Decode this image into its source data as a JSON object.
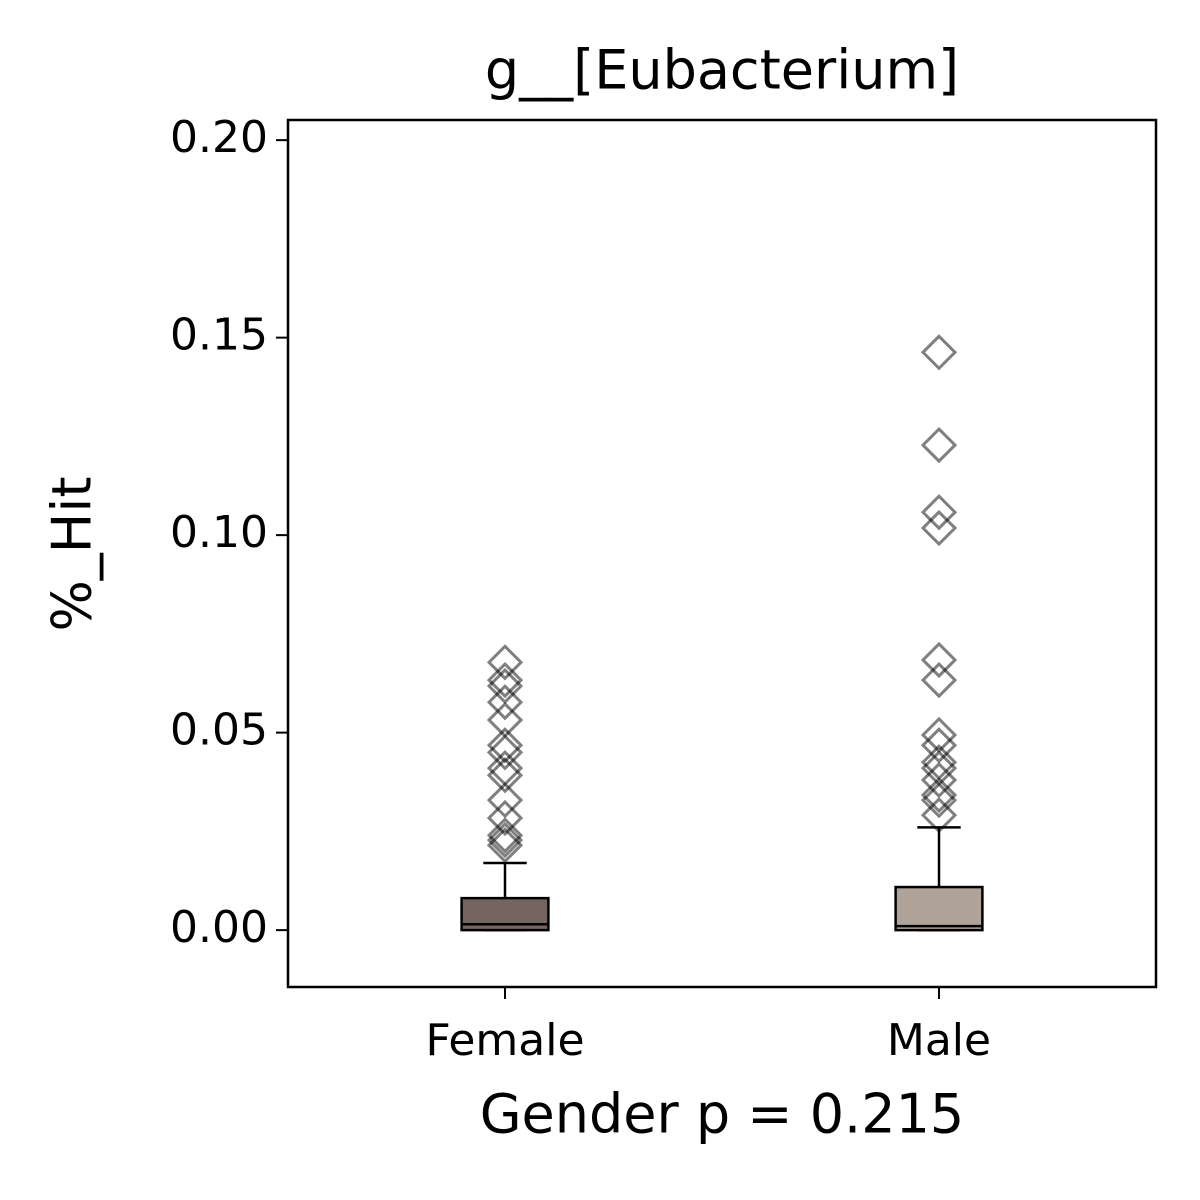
{
  "chart_data": {
    "type": "box",
    "title": "g__[Eubacterium]",
    "xlabel": "Gender p = 0.215",
    "ylabel": "%_Hit",
    "categories": [
      "Female",
      "Male"
    ],
    "boxes": [
      {
        "color": "#756560",
        "min": 0,
        "q1": 0,
        "median": 0.0015,
        "q3": 0.0081,
        "max": 0.017,
        "outliers": [
          0.0678,
          0.0633,
          0.0618,
          0.0577,
          0.0532,
          0.0468,
          0.045,
          0.041,
          0.0392,
          0.0329,
          0.0284,
          0.024,
          0.0228,
          0.0215
        ]
      },
      {
        "color": "#b0a39a",
        "min": 0,
        "q1": 0,
        "median": 0.001,
        "q3": 0.0109,
        "max": 0.026,
        "outliers": [
          0.1463,
          0.1228,
          0.1058,
          0.1018,
          0.0684,
          0.0633,
          0.0494,
          0.0468,
          0.0425,
          0.041,
          0.038,
          0.0342,
          0.0329,
          0.0291
        ]
      }
    ],
    "ylim": [
      -0.0144,
      0.2051
    ],
    "yticks": [
      {
        "value": 0,
        "label": "0.00"
      },
      {
        "value": 0.05,
        "label": "0.05"
      },
      {
        "value": 0.1,
        "label": "0.10"
      },
      {
        "value": 0.15,
        "label": "0.15"
      },
      {
        "value": 0.2,
        "label": "0.20"
      }
    ]
  }
}
